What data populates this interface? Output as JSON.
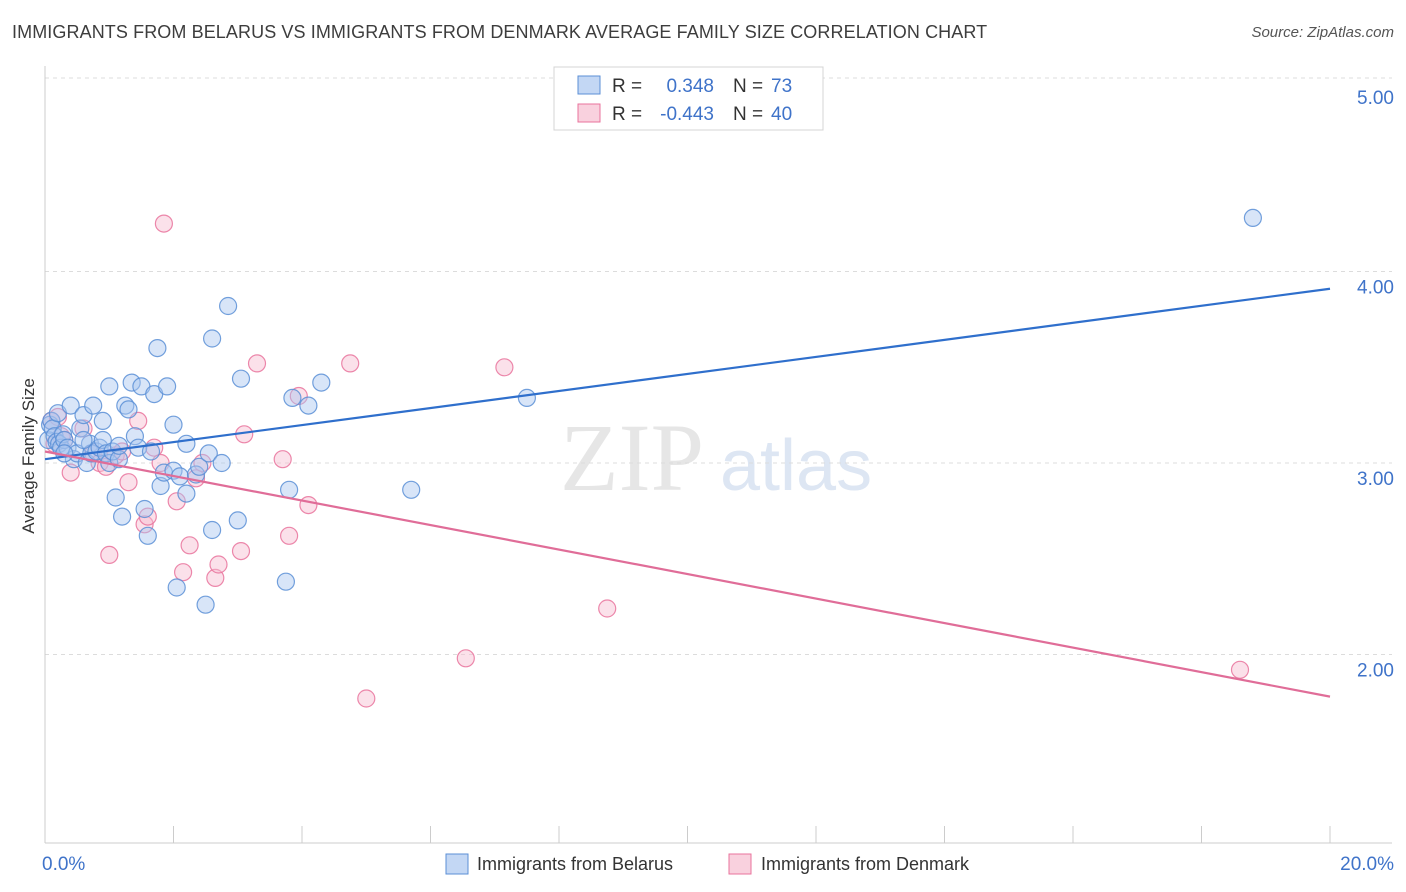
{
  "header": {
    "title": "IMMIGRANTS FROM BELARUS VS IMMIGRANTS FROM DENMARK AVERAGE FAMILY SIZE CORRELATION CHART",
    "source": "Source: ZipAtlas.com"
  },
  "watermark": {
    "zip": "ZIP",
    "atlas": "atlas"
  },
  "colors": {
    "blue": "#5b8fd6",
    "blue_fill": "#a9c6ef",
    "blue_line": "#2f6fcc",
    "pink": "#e9739c",
    "pink_fill": "#f6bdd0",
    "pink_line": "#e06d98",
    "axis_text": "#3f73c9",
    "grid": "#dcdcdc"
  },
  "legend": {
    "rows": [
      {
        "r_label": "R =",
        "r_value": "0.348",
        "n_label": "N =",
        "n_value": "73"
      },
      {
        "r_label": "R =",
        "r_value": "-0.443",
        "n_label": "N =",
        "n_value": "40"
      }
    ]
  },
  "chart_data": {
    "type": "scatter",
    "title": "IMMIGRANTS FROM BELARUS VS IMMIGRANTS FROM DENMARK AVERAGE FAMILY SIZE CORRELATION CHART",
    "xlabel": "",
    "ylabel": "Average Family Size",
    "xlim": [
      0,
      20
    ],
    "ylim": [
      1.0,
      5.1
    ],
    "x_tick_labels": [
      {
        "value": 0,
        "label": "0.0%"
      },
      {
        "value": 20,
        "label": "20.0%"
      }
    ],
    "y_tick_labels": [
      {
        "value": 2.0,
        "label": "2.00"
      },
      {
        "value": 3.0,
        "label": "3.00"
      },
      {
        "value": 4.0,
        "label": "4.00"
      },
      {
        "value": 5.0,
        "label": "5.00"
      }
    ],
    "series": [
      {
        "name": "Immigrants from Belarus",
        "color": "blue",
        "trend": {
          "x": [
            0,
            20
          ],
          "y": [
            3.02,
            3.91
          ]
        },
        "points": [
          [
            0.05,
            3.12
          ],
          [
            0.08,
            3.2
          ],
          [
            0.1,
            3.22
          ],
          [
            0.12,
            3.18
          ],
          [
            0.15,
            3.14
          ],
          [
            0.18,
            3.11
          ],
          [
            0.2,
            3.26
          ],
          [
            0.22,
            3.1
          ],
          [
            0.25,
            3.08
          ],
          [
            0.28,
            3.15
          ],
          [
            0.3,
            3.12
          ],
          [
            0.35,
            3.08
          ],
          [
            0.4,
            3.3
          ],
          [
            0.45,
            3.02
          ],
          [
            0.5,
            3.05
          ],
          [
            0.55,
            3.18
          ],
          [
            0.6,
            3.25
          ],
          [
            0.65,
            3.0
          ],
          [
            0.7,
            3.1
          ],
          [
            0.72,
            3.05
          ],
          [
            0.75,
            3.3
          ],
          [
            0.8,
            3.06
          ],
          [
            0.85,
            3.08
          ],
          [
            0.9,
            3.12
          ],
          [
            0.95,
            3.05
          ],
          [
            1.0,
            3.0
          ],
          [
            1.0,
            3.4
          ],
          [
            1.05,
            3.06
          ],
          [
            1.1,
            2.82
          ],
          [
            1.15,
            3.02
          ],
          [
            1.2,
            2.72
          ],
          [
            1.25,
            3.3
          ],
          [
            1.3,
            3.28
          ],
          [
            1.35,
            3.42
          ],
          [
            1.4,
            3.14
          ],
          [
            1.45,
            3.08
          ],
          [
            1.5,
            3.4
          ],
          [
            1.55,
            2.76
          ],
          [
            1.6,
            2.62
          ],
          [
            1.65,
            3.06
          ],
          [
            1.7,
            3.36
          ],
          [
            1.75,
            3.6
          ],
          [
            1.8,
            2.88
          ],
          [
            1.85,
            2.95
          ],
          [
            1.9,
            3.4
          ],
          [
            2.0,
            2.96
          ],
          [
            2.0,
            3.2
          ],
          [
            2.05,
            2.35
          ],
          [
            2.1,
            2.93
          ],
          [
            2.2,
            3.1
          ],
          [
            2.2,
            2.84
          ],
          [
            2.35,
            2.94
          ],
          [
            2.4,
            2.98
          ],
          [
            2.5,
            2.26
          ],
          [
            2.55,
            3.05
          ],
          [
            2.6,
            2.65
          ],
          [
            2.6,
            3.65
          ],
          [
            2.75,
            3.0
          ],
          [
            2.85,
            3.82
          ],
          [
            3.0,
            2.7
          ],
          [
            3.05,
            3.44
          ],
          [
            3.75,
            2.38
          ],
          [
            3.8,
            2.86
          ],
          [
            3.85,
            3.34
          ],
          [
            4.1,
            3.3
          ],
          [
            4.3,
            3.42
          ],
          [
            5.7,
            2.86
          ],
          [
            7.5,
            3.34
          ],
          [
            18.8,
            4.28
          ],
          [
            0.3,
            3.05
          ],
          [
            0.6,
            3.12
          ],
          [
            0.9,
            3.22
          ],
          [
            1.15,
            3.09
          ]
        ]
      },
      {
        "name": "Immigrants from Denmark",
        "color": "pink",
        "trend": {
          "x": [
            0,
            20
          ],
          "y": [
            3.06,
            1.78
          ]
        },
        "points": [
          [
            0.1,
            3.22
          ],
          [
            0.15,
            3.1
          ],
          [
            0.2,
            3.24
          ],
          [
            0.25,
            3.14
          ],
          [
            0.3,
            3.12
          ],
          [
            0.4,
            2.95
          ],
          [
            0.6,
            3.18
          ],
          [
            0.75,
            3.05
          ],
          [
            0.85,
            3.0
          ],
          [
            0.95,
            2.98
          ],
          [
            1.0,
            2.52
          ],
          [
            1.1,
            3.04
          ],
          [
            1.2,
            3.06
          ],
          [
            1.3,
            2.9
          ],
          [
            1.45,
            3.22
          ],
          [
            1.55,
            2.68
          ],
          [
            1.6,
            2.72
          ],
          [
            1.7,
            3.08
          ],
          [
            1.8,
            3.0
          ],
          [
            1.85,
            4.25
          ],
          [
            2.05,
            2.8
          ],
          [
            2.15,
            2.43
          ],
          [
            2.25,
            2.57
          ],
          [
            2.35,
            2.92
          ],
          [
            2.45,
            3.0
          ],
          [
            2.65,
            2.4
          ],
          [
            2.7,
            2.47
          ],
          [
            3.05,
            2.54
          ],
          [
            3.1,
            3.15
          ],
          [
            3.3,
            3.52
          ],
          [
            3.7,
            3.02
          ],
          [
            3.8,
            2.62
          ],
          [
            3.95,
            3.35
          ],
          [
            4.1,
            2.78
          ],
          [
            4.75,
            3.52
          ],
          [
            5.0,
            1.77
          ],
          [
            6.55,
            1.98
          ],
          [
            7.15,
            3.5
          ],
          [
            8.75,
            2.24
          ],
          [
            18.6,
            1.92
          ]
        ]
      }
    ]
  }
}
